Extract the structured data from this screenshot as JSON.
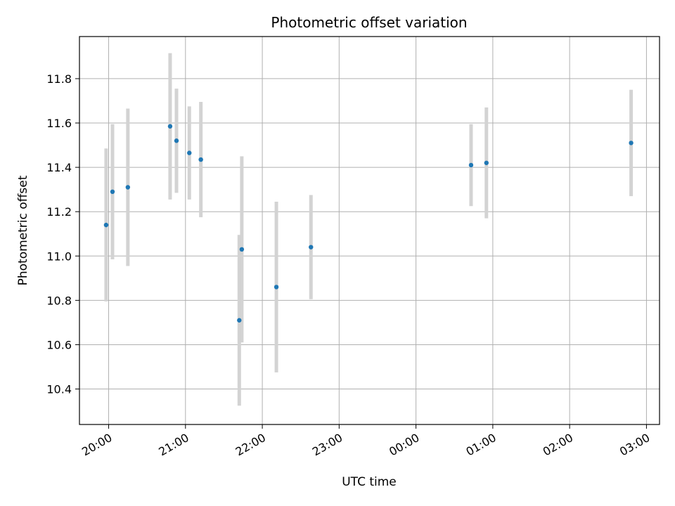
{
  "chart_data": {
    "type": "scatter",
    "title": "Photometric offset variation",
    "xlabel": "UTC time",
    "ylabel": "Photometric offset",
    "x_axis": {
      "kind": "time",
      "range_hours": [
        19.62,
        27.17
      ],
      "ticks": [
        {
          "hour": 20,
          "label": "20:00"
        },
        {
          "hour": 21,
          "label": "21:00"
        },
        {
          "hour": 22,
          "label": "22:00"
        },
        {
          "hour": 23,
          "label": "23:00"
        },
        {
          "hour": 24,
          "label": "00:00"
        },
        {
          "hour": 25,
          "label": "01:00"
        },
        {
          "hour": 26,
          "label": "02:00"
        },
        {
          "hour": 27,
          "label": "03:00"
        }
      ]
    },
    "y_axis": {
      "range": [
        10.24,
        11.99
      ],
      "ticks": [
        10.4,
        10.6,
        10.8,
        11.0,
        11.2,
        11.4,
        11.6,
        11.8
      ]
    },
    "grid": true,
    "colors": {
      "point": "#1f77b4",
      "errorbar": "#d3d3d3",
      "grid": "#b0b0b0"
    },
    "points": [
      {
        "time": "19:58",
        "hour": 19.967,
        "y": 11.14,
        "err": 0.345
      },
      {
        "time": "20:03",
        "hour": 20.05,
        "y": 11.29,
        "err": 0.305
      },
      {
        "time": "20:15",
        "hour": 20.25,
        "y": 11.31,
        "err": 0.355
      },
      {
        "time": "20:48",
        "hour": 20.8,
        "y": 11.585,
        "err": 0.33
      },
      {
        "time": "20:53",
        "hour": 20.883,
        "y": 11.52,
        "err": 0.235
      },
      {
        "time": "21:03",
        "hour": 21.05,
        "y": 11.465,
        "err": 0.21
      },
      {
        "time": "21:12",
        "hour": 21.2,
        "y": 11.435,
        "err": 0.26
      },
      {
        "time": "21:42",
        "hour": 21.7,
        "y": 10.71,
        "err": 0.385
      },
      {
        "time": "21:44",
        "hour": 21.733,
        "y": 11.03,
        "err": 0.42
      },
      {
        "time": "22:11",
        "hour": 22.183,
        "y": 10.86,
        "err": 0.385
      },
      {
        "time": "22:38",
        "hour": 22.633,
        "y": 11.04,
        "err": 0.235
      },
      {
        "time": "00:43",
        "hour": 24.717,
        "y": 11.41,
        "err": 0.185
      },
      {
        "time": "00:55",
        "hour": 24.917,
        "y": 11.42,
        "err": 0.25
      },
      {
        "time": "02:48",
        "hour": 26.8,
        "y": 11.51,
        "err": 0.24
      }
    ]
  }
}
